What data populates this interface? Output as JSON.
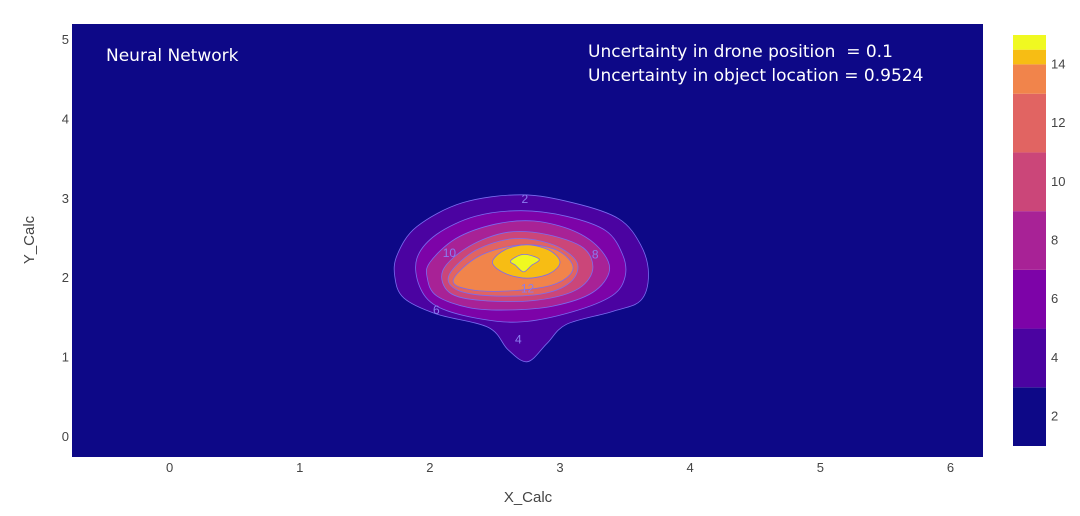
{
  "chart_data": {
    "type": "contour",
    "title": "",
    "xlabel": "X_Calc",
    "ylabel": "Y_Calc",
    "xlim": [
      -0.75,
      6.25
    ],
    "ylim": [
      -0.25,
      5.2
    ],
    "x_ticks": [
      "0",
      "1",
      "2",
      "3",
      "4",
      "5",
      "6"
    ],
    "y_ticks": [
      "0",
      "1",
      "2",
      "3",
      "4",
      "5"
    ],
    "peak": {
      "x": 2.73,
      "y": 2.25,
      "z": 15
    },
    "levels": [
      {
        "value": 2,
        "color": "#4b03a1",
        "label": "2",
        "path": [
          [
            1.75,
            2.3
          ],
          [
            1.9,
            2.65
          ],
          [
            2.25,
            2.95
          ],
          [
            2.7,
            3.05
          ],
          [
            3.1,
            2.95
          ],
          [
            3.45,
            2.75
          ],
          [
            3.62,
            2.42
          ],
          [
            3.68,
            2.05
          ],
          [
            3.62,
            1.72
          ],
          [
            3.4,
            1.58
          ],
          [
            3.05,
            1.42
          ],
          [
            2.9,
            1.18
          ],
          [
            2.75,
            0.95
          ],
          [
            2.6,
            1.1
          ],
          [
            2.45,
            1.38
          ],
          [
            2.05,
            1.55
          ],
          [
            1.8,
            1.75
          ],
          [
            1.73,
            2.02
          ]
        ]
      },
      {
        "value": 4,
        "color": "#7d03a8",
        "label": "4",
        "path": [
          [
            1.9,
            2.25
          ],
          [
            2.05,
            2.55
          ],
          [
            2.35,
            2.78
          ],
          [
            2.7,
            2.85
          ],
          [
            3.05,
            2.78
          ],
          [
            3.35,
            2.6
          ],
          [
            3.48,
            2.3
          ],
          [
            3.5,
            2.02
          ],
          [
            3.4,
            1.78
          ],
          [
            3.1,
            1.58
          ],
          [
            2.7,
            1.45
          ],
          [
            2.35,
            1.5
          ],
          [
            2.05,
            1.65
          ],
          [
            1.92,
            1.9
          ]
        ]
      },
      {
        "value": 6,
        "color": "#a82296",
        "label": "6",
        "path": [
          [
            2.0,
            2.2
          ],
          [
            2.2,
            2.5
          ],
          [
            2.5,
            2.68
          ],
          [
            2.8,
            2.72
          ],
          [
            3.1,
            2.6
          ],
          [
            3.3,
            2.38
          ],
          [
            3.38,
            2.1
          ],
          [
            3.25,
            1.82
          ],
          [
            2.95,
            1.65
          ],
          [
            2.6,
            1.6
          ],
          [
            2.3,
            1.63
          ],
          [
            2.05,
            1.78
          ],
          [
            1.98,
            2.0
          ]
        ]
      },
      {
        "value": 8,
        "color": "#cb4679",
        "label": "8",
        "path": [
          [
            2.1,
            2.1
          ],
          [
            2.3,
            2.4
          ],
          [
            2.6,
            2.58
          ],
          [
            2.9,
            2.55
          ],
          [
            3.18,
            2.38
          ],
          [
            3.25,
            2.1
          ],
          [
            3.12,
            1.85
          ],
          [
            2.8,
            1.72
          ],
          [
            2.4,
            1.72
          ],
          [
            2.15,
            1.82
          ]
        ]
      },
      {
        "value": 10,
        "color": "#e16462",
        "label": "10",
        "path": [
          [
            2.15,
            2.05
          ],
          [
            2.35,
            2.35
          ],
          [
            2.65,
            2.5
          ],
          [
            2.95,
            2.42
          ],
          [
            3.13,
            2.2
          ],
          [
            3.08,
            1.95
          ],
          [
            2.85,
            1.8
          ],
          [
            2.45,
            1.78
          ],
          [
            2.2,
            1.86
          ]
        ]
      },
      {
        "value": 12,
        "color": "#f1844b",
        "label": "12",
        "path": [
          [
            2.18,
            1.98
          ],
          [
            2.38,
            2.28
          ],
          [
            2.7,
            2.42
          ],
          [
            2.98,
            2.35
          ],
          [
            3.1,
            2.12
          ],
          [
            2.95,
            1.92
          ],
          [
            2.6,
            1.84
          ],
          [
            2.3,
            1.86
          ]
        ]
      },
      {
        "value": 13,
        "color": "#f7bd14",
        "label": "",
        "path": [
          [
            2.48,
            2.2
          ],
          [
            2.58,
            2.36
          ],
          [
            2.75,
            2.42
          ],
          [
            2.92,
            2.35
          ],
          [
            3.0,
            2.2
          ],
          [
            2.92,
            2.06
          ],
          [
            2.75,
            2.0
          ],
          [
            2.58,
            2.06
          ]
        ]
      },
      {
        "value": 14,
        "color": "#f0f921",
        "label": "",
        "path": [
          [
            2.62,
            2.22
          ],
          [
            2.72,
            2.3
          ],
          [
            2.84,
            2.24
          ],
          [
            2.78,
            2.16
          ],
          [
            2.72,
            2.08
          ],
          [
            2.66,
            2.16
          ]
        ]
      }
    ],
    "contour_labels": [
      {
        "text": "2",
        "x": 2.73,
        "y": 3.0
      },
      {
        "text": "10",
        "x": 2.15,
        "y": 2.32
      },
      {
        "text": "8",
        "x": 3.27,
        "y": 2.3
      },
      {
        "text": "12",
        "x": 2.75,
        "y": 1.87
      },
      {
        "text": "6",
        "x": 2.05,
        "y": 1.6
      },
      {
        "text": "4",
        "x": 2.68,
        "y": 1.23
      }
    ],
    "colorbar": {
      "range": [
        1,
        15
      ],
      "ticks": [
        "2",
        "4",
        "6",
        "8",
        "10",
        "12",
        "14"
      ],
      "bands": [
        {
          "from": 1,
          "to": 3,
          "color": "#0d0887"
        },
        {
          "from": 3,
          "to": 5,
          "color": "#4b03a1"
        },
        {
          "from": 5,
          "to": 7,
          "color": "#7d03a8"
        },
        {
          "from": 7,
          "to": 9,
          "color": "#a82296"
        },
        {
          "from": 9,
          "to": 11,
          "color": "#cb4679"
        },
        {
          "from": 11,
          "to": 13,
          "color": "#e16462"
        },
        {
          "from": 13,
          "to": 14,
          "color": "#f1844b"
        },
        {
          "from": 14,
          "to": 14.5,
          "color": "#f7bd14"
        },
        {
          "from": 14.5,
          "to": 15,
          "color": "#f0f921"
        }
      ]
    },
    "annotations": {
      "left": "Neural Network",
      "right_line1": "Uncertainty in drone position  = 0.1",
      "right_line2": "Uncertainty in object location = 0.9524"
    },
    "background_color": "#0d0887",
    "grid": false
  }
}
